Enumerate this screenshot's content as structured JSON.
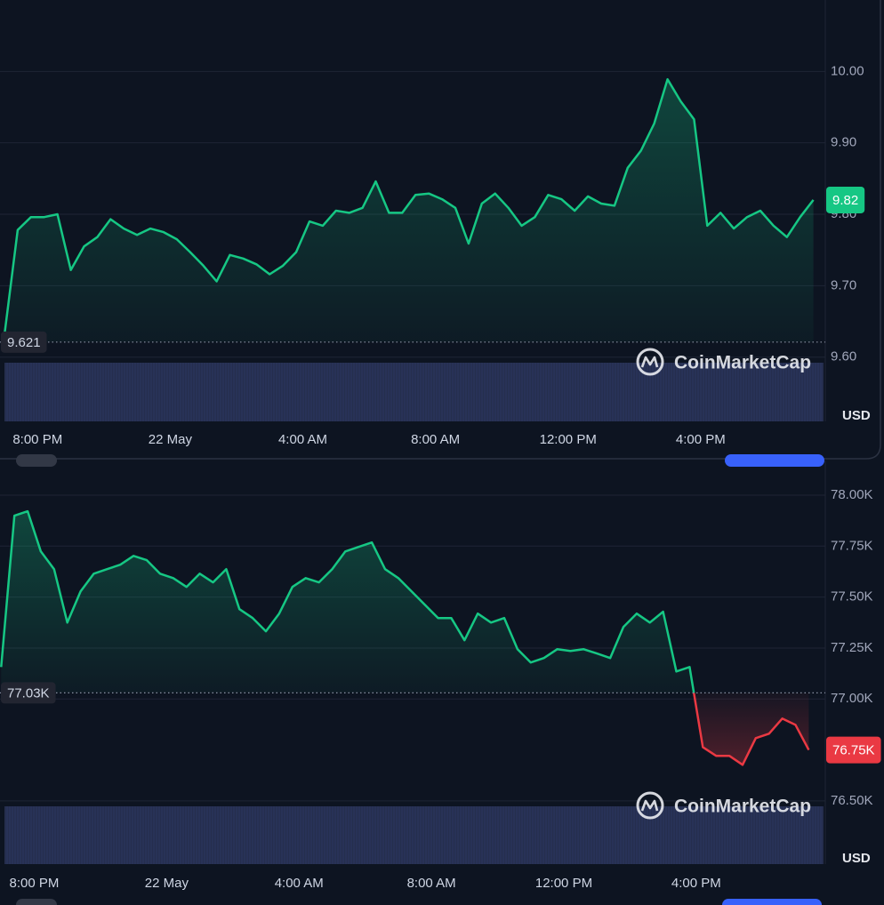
{
  "chart_data": [
    {
      "type": "area",
      "x": [
        19.0,
        19.4,
        19.8,
        20.2,
        20.6,
        21.0,
        21.4,
        21.8,
        22.2,
        22.6,
        23.0,
        23.4,
        23.8,
        24.2,
        24.6,
        25.0,
        25.4,
        25.8,
        26.2,
        26.6,
        27.0,
        27.4,
        27.8,
        28.2,
        28.6,
        29.0,
        29.4,
        29.8,
        30.2,
        30.6,
        31.0,
        31.4,
        31.8,
        32.2,
        32.6,
        33.0,
        33.4,
        33.8,
        34.2,
        34.6,
        35.0,
        35.4,
        35.8,
        36.2,
        36.6,
        37.0,
        37.4,
        37.8,
        38.2,
        38.6,
        39.0,
        39.4,
        39.8,
        40.2,
        40.6,
        41.0,
        41.4,
        41.8,
        42.2,
        42.6,
        43.0,
        43.4
      ],
      "values": [
        9.631,
        9.778,
        9.796,
        9.796,
        9.8,
        9.722,
        9.755,
        9.768,
        9.793,
        9.78,
        9.771,
        9.78,
        9.775,
        9.765,
        9.747,
        9.728,
        9.706,
        9.743,
        9.738,
        9.73,
        9.716,
        9.728,
        9.747,
        9.79,
        9.784,
        9.805,
        9.802,
        9.809,
        9.846,
        9.802,
        9.802,
        9.827,
        9.829,
        9.821,
        9.809,
        9.759,
        9.815,
        9.829,
        9.809,
        9.784,
        9.796,
        9.827,
        9.821,
        9.805,
        9.825,
        9.815,
        9.812,
        9.865,
        9.889,
        9.927,
        9.989,
        9.958,
        9.933,
        9.784,
        9.802,
        9.78,
        9.796,
        9.805,
        9.784,
        9.768,
        9.796,
        9.82
      ],
      "xlim": [
        19.0,
        43.76
      ],
      "ylim": [
        9.51,
        10.1
      ],
      "xticks": [
        {
          "value": 20,
          "label": "8:00 PM"
        },
        {
          "value": 24,
          "label": "22 May"
        },
        {
          "value": 28,
          "label": "4:00 AM"
        },
        {
          "value": 32,
          "label": "8:00 AM"
        },
        {
          "value": 36,
          "label": "12:00 PM"
        },
        {
          "value": 40,
          "label": "4:00 PM"
        }
      ],
      "yticks": [
        {
          "value": 10,
          "label": "10.00"
        },
        {
          "value": 9.9,
          "label": "9.90"
        },
        {
          "value": 9.8,
          "label": "9.80"
        },
        {
          "value": 9.7,
          "label": "9.70"
        },
        {
          "value": 9.6,
          "label": "9.60"
        }
      ],
      "reference": 9.621,
      "current_price": 9.82,
      "currency": "USD",
      "watermark": "CoinMarketCap",
      "color": "#16c784",
      "color_below": "#ea3943",
      "grid": true
    },
    {
      "type": "area",
      "x": [
        19.0,
        19.4,
        19.8,
        20.2,
        20.6,
        21.0,
        21.4,
        21.8,
        22.2,
        22.6,
        23.0,
        23.4,
        23.8,
        24.2,
        24.6,
        25.0,
        25.4,
        25.8,
        26.2,
        26.6,
        27.0,
        27.4,
        27.8,
        28.2,
        28.6,
        29.0,
        29.4,
        29.8,
        30.2,
        30.6,
        31.0,
        31.4,
        31.8,
        32.2,
        32.6,
        33.0,
        33.4,
        33.8,
        34.2,
        34.6,
        35.0,
        35.4,
        35.8,
        36.2,
        36.6,
        37.0,
        37.4,
        37.8,
        38.2,
        38.6,
        39.0,
        39.4,
        39.8,
        40.2,
        40.6,
        41.0,
        41.4,
        41.8,
        42.2,
        42.6,
        43.0,
        43.4
      ],
      "values": [
        77157,
        77899,
        77921,
        77724,
        77637,
        77375,
        77528,
        77615,
        77637,
        77659,
        77702,
        77681,
        77615,
        77593,
        77550,
        77615,
        77572,
        77637,
        77441,
        77397,
        77332,
        77419,
        77550,
        77593,
        77572,
        77637,
        77724,
        77746,
        77768,
        77637,
        77593,
        77528,
        77462,
        77397,
        77397,
        77288,
        77419,
        77375,
        77397,
        77244,
        77179,
        77201,
        77244,
        77236,
        77244,
        77223,
        77201,
        77353,
        77419,
        77375,
        77428,
        77135,
        77157,
        76764,
        76721,
        76721,
        76677,
        76808,
        76830,
        76904,
        76873,
        76750
      ],
      "xlim": [
        19.1,
        43.9
      ],
      "ylim": [
        76190,
        78170
      ],
      "xticks": [
        {
          "value": 20,
          "label": "8:00 PM"
        },
        {
          "value": 24,
          "label": "22 May"
        },
        {
          "value": 28,
          "label": "4:00 AM"
        },
        {
          "value": 32,
          "label": "8:00 AM"
        },
        {
          "value": 36,
          "label": "12:00 PM"
        },
        {
          "value": 40,
          "label": "4:00 PM"
        }
      ],
      "yticks": [
        {
          "value": 78000,
          "label": "78.00K"
        },
        {
          "value": 77750,
          "label": "77.75K"
        },
        {
          "value": 77500,
          "label": "77.50K"
        },
        {
          "value": 77250,
          "label": "77.25K"
        },
        {
          "value": 77000,
          "label": "77.00K"
        },
        {
          "value": 76500,
          "label": "76.50K"
        }
      ],
      "reference": {
        "value": 77030,
        "label": "77.03K"
      },
      "current_price": {
        "value": 76750,
        "label": "76.75K"
      },
      "currency": "USD",
      "watermark": "CoinMarketCap",
      "color": "#16c784",
      "color_below": "#ea3943",
      "grid": true
    }
  ]
}
